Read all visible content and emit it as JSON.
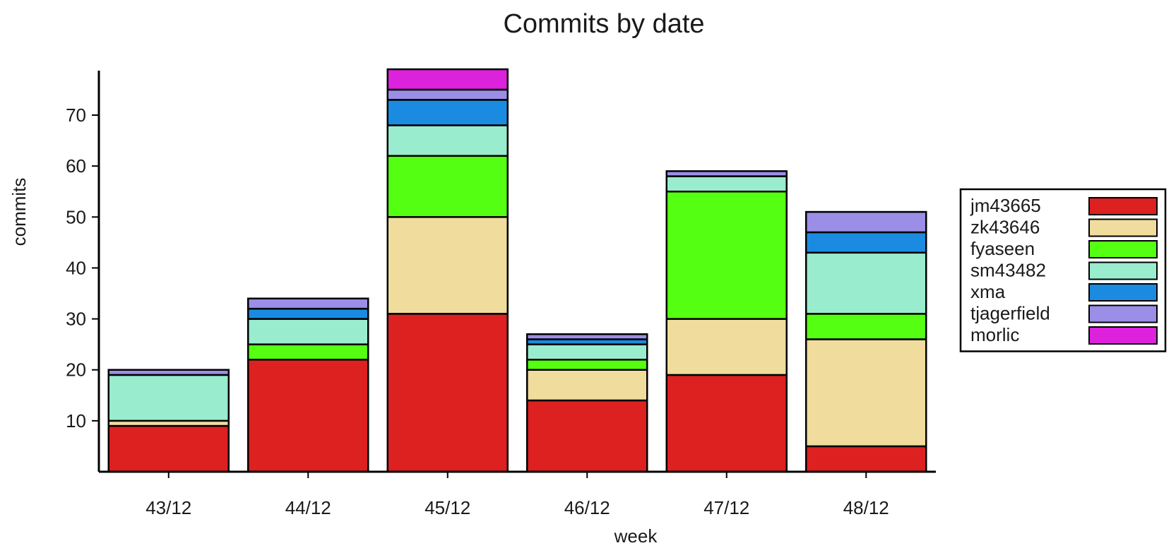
{
  "chart_data": {
    "type": "bar",
    "stacked": true,
    "title": "Commits by date",
    "xlabel": "week",
    "ylabel": "commits",
    "ylim": [
      0,
      80
    ],
    "yticks": [
      10,
      20,
      30,
      40,
      50,
      60,
      70
    ],
    "grid": false,
    "legend_position": "right",
    "categories": [
      "43/12",
      "44/12",
      "45/12",
      "46/12",
      "47/12",
      "48/12"
    ],
    "series": [
      {
        "name": "jm43665",
        "color": "#dd2020",
        "values": [
          9,
          22,
          31,
          14,
          19,
          5
        ]
      },
      {
        "name": "zk43646",
        "color": "#f0dc9c",
        "values": [
          1,
          0,
          19,
          6,
          11,
          21
        ]
      },
      {
        "name": "fyaseen",
        "color": "#55ff11",
        "values": [
          0,
          3,
          12,
          2,
          25,
          5
        ]
      },
      {
        "name": "sm43482",
        "color": "#99ecce",
        "values": [
          9,
          5,
          6,
          3,
          3,
          12
        ]
      },
      {
        "name": "xma",
        "color": "#1a8be0",
        "values": [
          0,
          2,
          5,
          1,
          0,
          4
        ]
      },
      {
        "name": "tjagerfield",
        "color": "#9b8ee6",
        "values": [
          1,
          2,
          2,
          1,
          1,
          4
        ]
      },
      {
        "name": "morlic",
        "color": "#dd22dd",
        "values": [
          0,
          0,
          4,
          0,
          0,
          0
        ]
      }
    ]
  }
}
